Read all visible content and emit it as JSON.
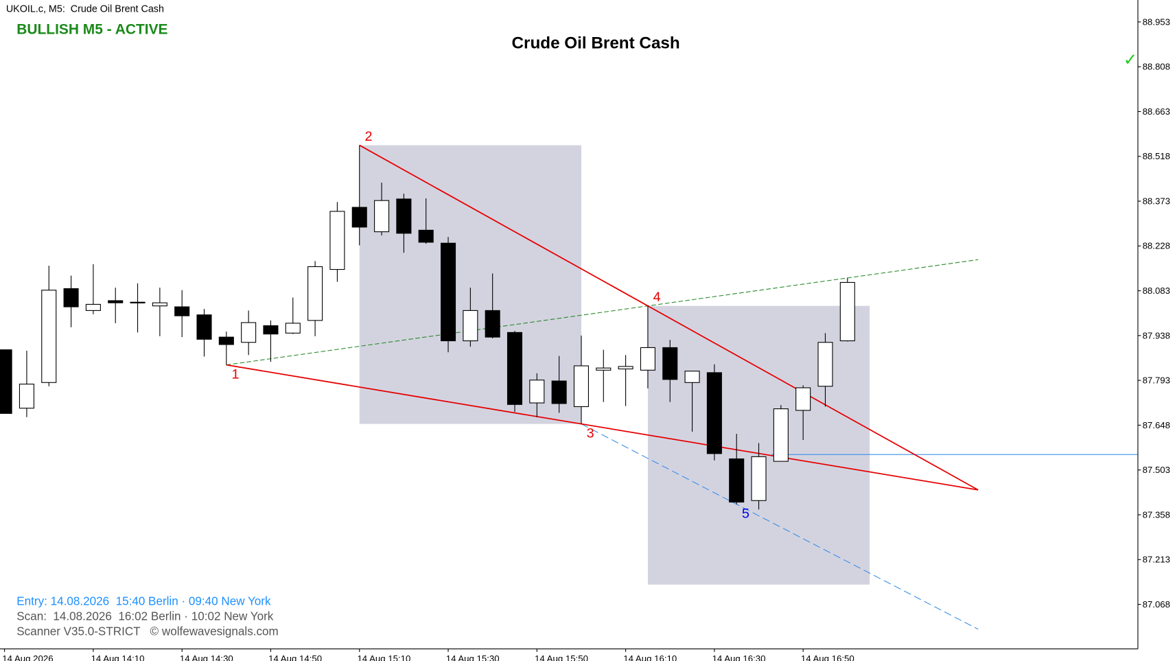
{
  "header": {
    "symbol_line": "UKOIL.c, M5:  Crude Oil Brent Cash",
    "status": "BULLISH M5 - ACTIVE",
    "status_mark": "✓"
  },
  "chart_data": {
    "type": "candlestick",
    "title": "Crude Oil Brent Cash",
    "categories": [
      "14 Aug 2026",
      null,
      null,
      null,
      "14 Aug 14:10",
      null,
      null,
      null,
      "14 Aug 14:30",
      null,
      null,
      null,
      "14 Aug 14:50",
      null,
      null,
      null,
      "14 Aug 15:10",
      null,
      null,
      null,
      "14 Aug 15:30",
      null,
      null,
      null,
      "14 Aug 15:50",
      null,
      null,
      null,
      "14 Aug 16:10",
      null,
      null,
      null,
      "14 Aug 16:30",
      null,
      null,
      null,
      "14 Aug 16:50",
      null,
      null
    ],
    "open": [
      87.892,
      87.703,
      87.786,
      88.09,
      88.019,
      88.051,
      88.046,
      88.034,
      88.031,
      88.005,
      87.933,
      87.916,
      87.97,
      87.946,
      87.987,
      88.152,
      88.353,
      88.274,
      88.38,
      88.279,
      88.237,
      87.921,
      88.019,
      87.948,
      87.72,
      87.791,
      87.708,
      87.826,
      87.83,
      87.826,
      87.899,
      87.786,
      87.818,
      87.539,
      87.404,
      87.531,
      87.696,
      87.774,
      87.921
    ],
    "high": [
      87.892,
      87.889,
      88.164,
      88.132,
      88.169,
      88.093,
      88.107,
      88.093,
      88.085,
      88.024,
      87.951,
      88.019,
      87.987,
      88.061,
      88.179,
      88.37,
      88.554,
      88.433,
      88.397,
      88.382,
      88.257,
      88.093,
      88.139,
      87.953,
      87.816,
      87.872,
      87.938,
      87.892,
      87.875,
      88.034,
      87.924,
      87.823,
      87.845,
      87.62,
      87.59,
      87.713,
      87.777,
      87.946,
      88.125
    ],
    "low": [
      87.686,
      87.674,
      87.774,
      87.965,
      88.007,
      87.978,
      87.948,
      87.936,
      87.933,
      87.87,
      87.843,
      87.875,
      87.853,
      87.943,
      87.936,
      88.112,
      88.23,
      88.262,
      88.206,
      88.235,
      87.884,
      87.902,
      87.929,
      87.691,
      87.674,
      87.688,
      87.652,
      87.723,
      87.71,
      87.767,
      87.723,
      87.627,
      87.534,
      87.392,
      87.375,
      87.531,
      87.6,
      87.708,
      87.919
    ],
    "close": [
      87.686,
      87.781,
      88.085,
      88.031,
      88.039,
      88.044,
      88.044,
      88.044,
      88.002,
      87.926,
      87.909,
      87.98,
      87.943,
      87.978,
      88.161,
      88.34,
      88.289,
      88.375,
      88.269,
      88.24,
      87.921,
      88.019,
      87.933,
      87.715,
      87.794,
      87.718,
      87.84,
      87.833,
      87.838,
      87.899,
      87.796,
      87.823,
      87.556,
      87.399,
      87.546,
      87.701,
      87.769,
      87.916,
      88.11
    ],
    "up_color": "#ffffff",
    "down_color": "#000000",
    "ylim": [
      86.924,
      89.024
    ],
    "yticks": [
      88.953,
      88.808,
      88.663,
      88.518,
      88.373,
      88.228,
      88.083,
      87.938,
      87.793,
      87.648,
      87.503,
      87.358,
      87.213,
      87.068
    ],
    "wave_points": [
      {
        "label": "1",
        "index": 10,
        "price": 87.843,
        "color": "#e60000"
      },
      {
        "label": "2",
        "index": 16,
        "price": 88.554,
        "color": "#e60000"
      },
      {
        "label": "3",
        "index": 26,
        "price": 87.652,
        "color": "#e60000"
      },
      {
        "label": "4",
        "index": 29,
        "price": 88.034,
        "color": "#e60000"
      },
      {
        "label": "5",
        "index": 33,
        "price": 87.392,
        "color": "#0000e6"
      }
    ],
    "entry_level": 87.553
  },
  "footer": {
    "entry": "Entry: 14.08.2026  15:40 Berlin · 09:40 New York",
    "scan": "Scan:  14.08.2026  16:02 Berlin · 10:02 New York",
    "scanner": "Scanner V35.0-STRICT   © wolfewavesignals.com"
  }
}
